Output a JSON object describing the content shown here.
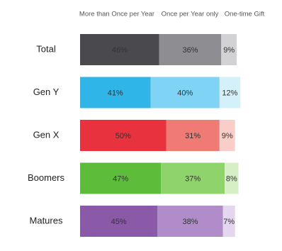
{
  "chart_data": {
    "type": "stacked-bar",
    "categories": [
      "Total",
      "Gen Y",
      "Gen X",
      "Boomers",
      "Matures"
    ],
    "series": [
      {
        "name": "More than Once per Year",
        "colors": [
          "#4a4a4e",
          "#2fb5e8",
          "#e8333f",
          "#5dbd3a",
          "#8a5aa8"
        ],
        "values": [
          46,
          41,
          50,
          47,
          45
        ],
        "value_labels": [
          "46%",
          "41%",
          "50%",
          "47%",
          "45%"
        ]
      },
      {
        "name": "Once per Year only",
        "colors": [
          "#8e8e92",
          "#7fd3f4",
          "#f07a74",
          "#8fd46a",
          "#b08ccb"
        ],
        "values": [
          36,
          40,
          31,
          37,
          38
        ],
        "value_labels": [
          "36%",
          "40%",
          "31%",
          "37%",
          "38%"
        ]
      },
      {
        "name": "One-time Gift",
        "colors": [
          "#d2d2d4",
          "#d4f0fb",
          "#f9cdc8",
          "#d6efc4",
          "#e3d6ee"
        ],
        "values": [
          9,
          12,
          9,
          8,
          7
        ],
        "value_labels": [
          "9%",
          "12%",
          "9%",
          "8%",
          "7%"
        ]
      }
    ]
  }
}
